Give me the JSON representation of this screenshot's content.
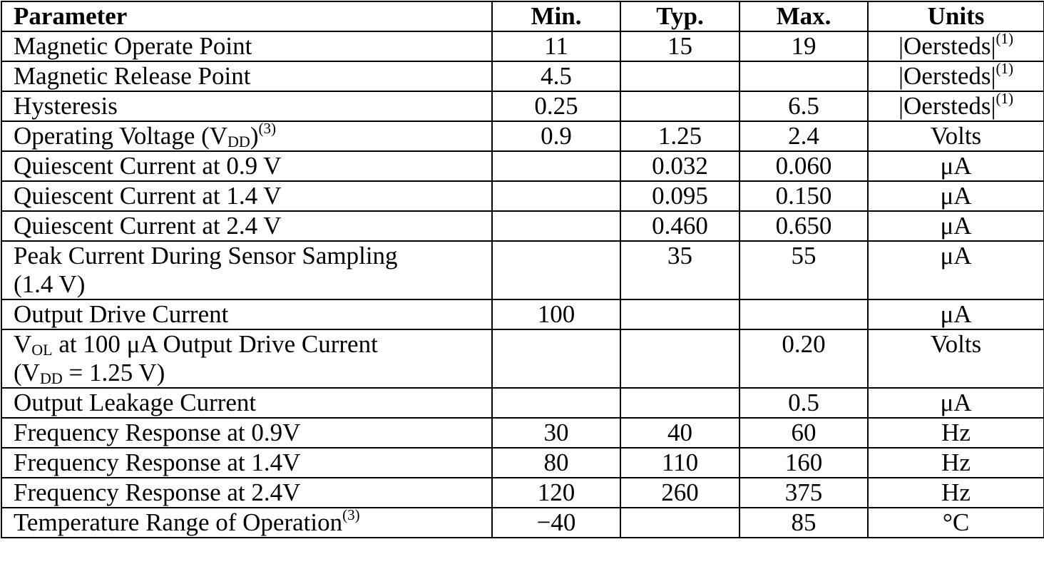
{
  "header": {
    "parameter": "Parameter",
    "min": "Min.",
    "typ": "Typ.",
    "max": "Max.",
    "units": "Units"
  },
  "rows": [
    {
      "p_pre": "Magnetic Operate Point",
      "min": "11",
      "typ": "15",
      "max": "19",
      "unit": "|Oersteds|",
      "unit_sup": "(1)"
    },
    {
      "p_pre": "Magnetic Release Point",
      "min": "4.5",
      "typ": "",
      "max": "",
      "unit": "|Oersteds|",
      "unit_sup": "(1)"
    },
    {
      "p_pre": "Hysteresis",
      "min": "0.25",
      "typ": "",
      "max": "6.5",
      "unit": "|Oersteds|",
      "unit_sup": "(1)"
    },
    {
      "p_pre": "Operating Voltage (V",
      "p_sub": "DD",
      "p_post": ")",
      "p_sup": "(3)",
      "min": "0.9",
      "typ": "1.25",
      "max": "2.4",
      "unit": "Volts"
    },
    {
      "p_pre": "Quiescent Current at 0.9 V",
      "min": "",
      "typ": "0.032",
      "max": "0.060",
      "unit": "μA"
    },
    {
      "p_pre": "Quiescent Current at 1.4 V",
      "min": "",
      "typ": "0.095",
      "max": "0.150",
      "unit": "μA"
    },
    {
      "p_pre": "Quiescent Current at 2.4 V",
      "min": "",
      "typ": "0.460",
      "max": "0.650",
      "unit": "μA"
    },
    {
      "p_pre": "Peak Current During Sensor Sampling",
      "p_line2": "(1.4 V)",
      "min": "",
      "typ": "35",
      "max": "55",
      "unit": "μA"
    },
    {
      "p_pre": "Output Drive Current",
      "min": "100",
      "typ": "",
      "max": "",
      "unit": "μA"
    },
    {
      "p_pre": "V",
      "p_sub": "OL",
      "p_post": " at 100 μA Output Drive Current",
      "p_line2_pre": "(V",
      "p_line2_sub": "DD",
      "p_line2_post": " = 1.25 V)",
      "min": "",
      "typ": "",
      "max": "0.20",
      "unit": "Volts"
    },
    {
      "p_pre": "Output Leakage Current",
      "min": "",
      "typ": "",
      "max": "0.5",
      "unit": "μA"
    },
    {
      "p_pre": "Frequency Response at 0.9V",
      "min": "30",
      "typ": "40",
      "max": "60",
      "unit": "Hz"
    },
    {
      "p_pre": "Frequency Response at 1.4V",
      "min": "80",
      "typ": "110",
      "max": "160",
      "unit": "Hz"
    },
    {
      "p_pre": "Frequency Response at 2.4V",
      "min": "120",
      "typ": "260",
      "max": "375",
      "unit": "Hz"
    },
    {
      "p_pre": "Temperature Range of Operation",
      "p_sup": "(3)",
      "min": "−40",
      "typ": "",
      "max": "85",
      "unit": "°C"
    }
  ]
}
